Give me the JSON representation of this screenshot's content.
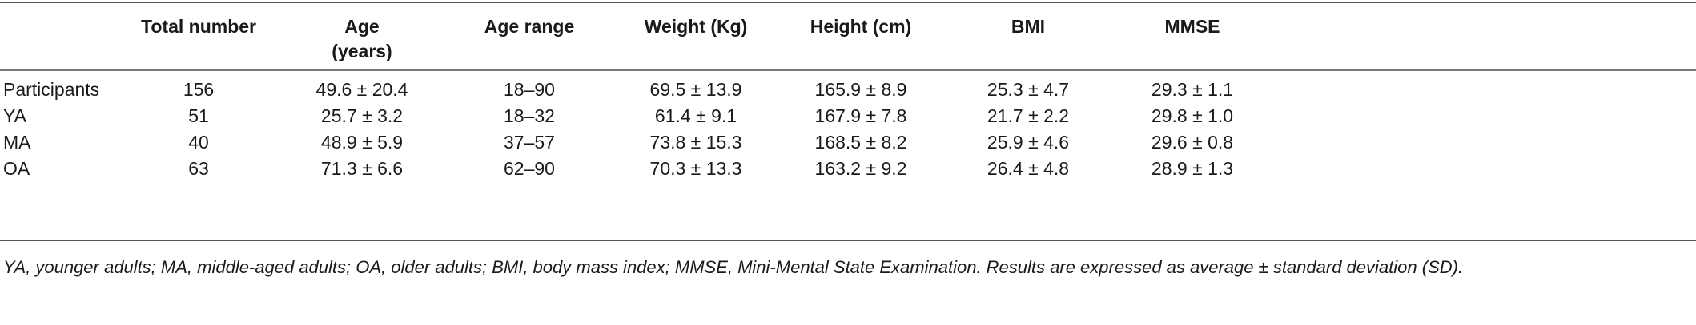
{
  "table": {
    "headers": [
      "",
      "Total number",
      "Age\n(years)",
      "Age range",
      "Weight (Kg)",
      "Height (cm)",
      "BMI",
      "MMSE"
    ],
    "header_lines": {
      "total_number": "Total number",
      "age_line1": "Age",
      "age_line2": "(years)",
      "age_range": "Age range",
      "weight": "Weight (Kg)",
      "height": "Height (cm)",
      "bmi": "BMI",
      "mmse": "MMSE"
    },
    "rows": [
      {
        "group": "Participants",
        "total": "156",
        "age": "49.6 ± 20.4",
        "age_range": "18–90",
        "weight": "69.5 ± 13.9",
        "height": "165.9 ± 8.9",
        "bmi": "25.3 ± 4.7",
        "mmse": "29.3 ± 1.1"
      },
      {
        "group": "YA",
        "total": "51",
        "age": "25.7 ± 3.2",
        "age_range": "18–32",
        "weight": "61.4 ± 9.1",
        "height": "167.9 ± 7.8",
        "bmi": "21.7 ± 2.2",
        "mmse": "29.8 ± 1.0"
      },
      {
        "group": "MA",
        "total": "40",
        "age": "48.9 ± 5.9",
        "age_range": "37–57",
        "weight": "73.8 ± 15.3",
        "height": "168.5 ± 8.2",
        "bmi": "25.9 ± 4.6",
        "mmse": "29.6 ± 0.8"
      },
      {
        "group": "OA",
        "total": "63",
        "age": "71.3 ± 6.6",
        "age_range": "62–90",
        "weight": "70.3 ± 13.3",
        "height": "163.2 ± 9.2",
        "bmi": "26.4 ± 4.8",
        "mmse": "28.9 ±  1.3"
      }
    ],
    "footnote": "YA, younger adults; MA, middle-aged adults; OA, older adults; BMI, body mass index; MMSE, Mini-Mental State Examination. Results are expressed as average ± standard deviation (SD)."
  }
}
